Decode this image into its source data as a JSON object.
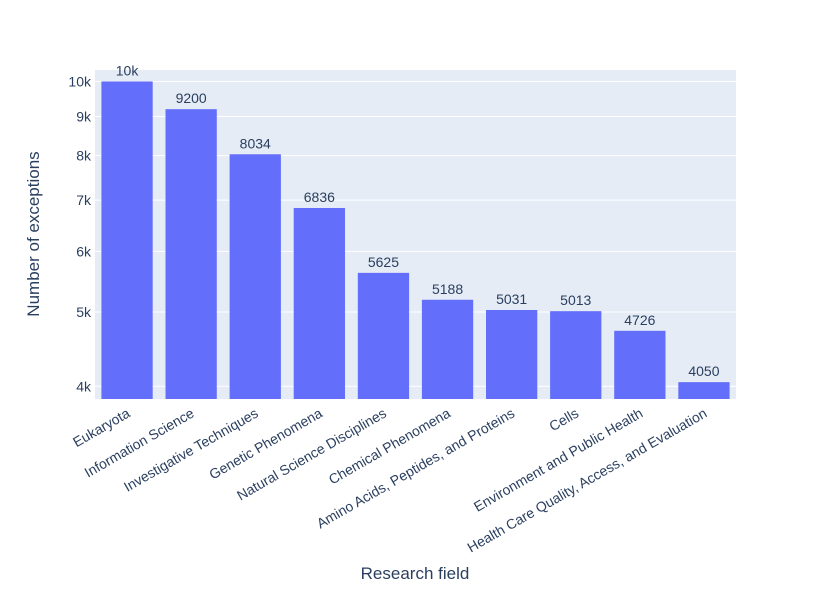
{
  "chart_data": {
    "type": "bar",
    "title": "",
    "xlabel": "Research field",
    "ylabel": "Number of exceptions",
    "yscale": "log",
    "ylim": [
      3850,
      10350
    ],
    "yticks": [
      4000,
      5000,
      6000,
      7000,
      8000,
      9000,
      10000
    ],
    "ytick_labels": [
      "4k",
      "5k",
      "6k",
      "7k",
      "8k",
      "9k",
      "10k"
    ],
    "grid": true,
    "bar_color": "#636efa",
    "plot_background": "#e5ecf6",
    "categories": [
      "Eukaryota",
      "Information Science",
      "Investigative Techniques",
      "Genetic Phenomena",
      "Natural Science Disciplines",
      "Chemical Phenomena",
      "Amino Acids, Peptides, and Proteins",
      "Cells",
      "Environment and Public Health",
      "Health Care Quality, Access, and Evaluation"
    ],
    "values": [
      10000,
      9200,
      8034,
      6836,
      5625,
      5188,
      5031,
      5013,
      4726,
      4050
    ],
    "data_labels": [
      "10k",
      "9200",
      "8034",
      "6836",
      "5625",
      "5188",
      "5031",
      "5013",
      "4726",
      "4050"
    ]
  }
}
